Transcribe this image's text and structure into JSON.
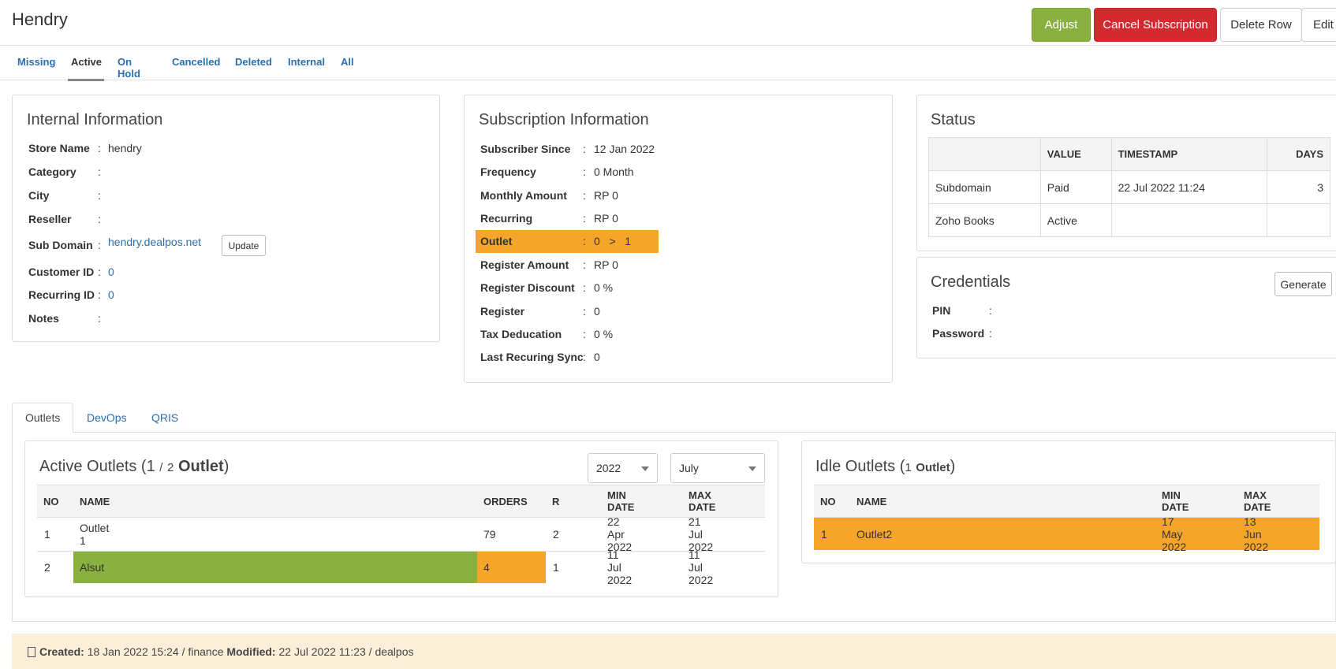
{
  "page": {
    "title": "Hendry"
  },
  "actions": {
    "adjust": "Adjust",
    "cancel": "Cancel Subscription",
    "delete": "Delete Row",
    "edit": "Edit"
  },
  "colors": {
    "green": "#8ab13f",
    "red": "#d32a2f",
    "orange": "#f5a62a",
    "link": "#2a6fb0",
    "footer_bg": "#fcefd9"
  },
  "top_tabs": [
    "Missing",
    "Active",
    "On Hold",
    "Cancelled",
    "Deleted",
    "Internal",
    "All"
  ],
  "top_tabs_active": "Active",
  "internal": {
    "title": "Internal Information",
    "store_name_label": "Store Name",
    "store_name": "hendry",
    "category_label": "Category",
    "city_label": "City",
    "reseller_label": "Reseller",
    "subdomain_label": "Sub Domain",
    "subdomain": "hendry.dealpos.net",
    "update_button": "Update",
    "customer_id_label": "Customer ID",
    "customer_id": "0",
    "recurring_id_label": "Recurring ID",
    "recurring_id": "0",
    "notes_label": "Notes"
  },
  "subscription": {
    "title": "Subscription Information",
    "rows": [
      {
        "label": "Subscriber Since",
        "value": "12 Jan 2022"
      },
      {
        "label": "Frequency",
        "value": "0 Month"
      },
      {
        "label": "Monthly Amount",
        "value": "RP 0"
      },
      {
        "label": "Recurring",
        "value": "RP 0"
      },
      {
        "label": "Outlet",
        "value": "0   >   1"
      },
      {
        "label": "Register Amount",
        "value": "RP 0"
      },
      {
        "label": "Register Discount",
        "value": "0 %"
      },
      {
        "label": "Register",
        "value": "0"
      },
      {
        "label": "Tax Deducation",
        "value": "0 %"
      },
      {
        "label": "Last Recuring Sync",
        "value": "0"
      }
    ]
  },
  "status": {
    "title": "Status",
    "headers": [
      "",
      "VALUE",
      "TIMESTAMP",
      "DAYS"
    ],
    "rows": [
      [
        "Subdomain",
        "Paid",
        "22 Jul 2022 11:24",
        "3"
      ],
      [
        "Zoho Books",
        "Active",
        "",
        ""
      ]
    ]
  },
  "credentials": {
    "title": "Credentials",
    "generate": "Generate",
    "pin_label": "PIN",
    "password_label": "Password"
  },
  "bottom_tabs": [
    "Outlets",
    "DevOps",
    "QRIS"
  ],
  "active_outlets": {
    "title_prefix": "Active Outlets (",
    "count_a": "1",
    "slash": "/",
    "count_b": "2",
    "unit": "Outlet",
    "close": ")",
    "year": "2022",
    "month": "July",
    "headers": [
      "NO",
      "NAME",
      "ORDERS",
      "R",
      "MIN DATE",
      "MAX DATE"
    ],
    "rows": [
      [
        "1",
        "Outlet 1",
        "79",
        "2",
        "22 Apr 2022",
        "21 Jul 2022"
      ],
      [
        "2",
        "Alsut",
        "4",
        "1",
        "11 Jul 2022",
        "11 Jul 2022"
      ]
    ]
  },
  "idle_outlets": {
    "title_prefix": "Idle Outlets (",
    "count": "1",
    "unit": "Outlet",
    "close": ")",
    "headers": [
      "NO",
      "NAME",
      "MIN DATE",
      "MAX DATE"
    ],
    "rows": [
      [
        "1",
        "Outlet2",
        "17 May 2022",
        "13 Jun 2022"
      ]
    ]
  },
  "footer": {
    "created_label": "Created:",
    "created": "18 Jan 2022 15:24 / finance",
    "modified_label": "Modified:",
    "modified": "22 Jul 2022 11:23 / dealpos"
  }
}
